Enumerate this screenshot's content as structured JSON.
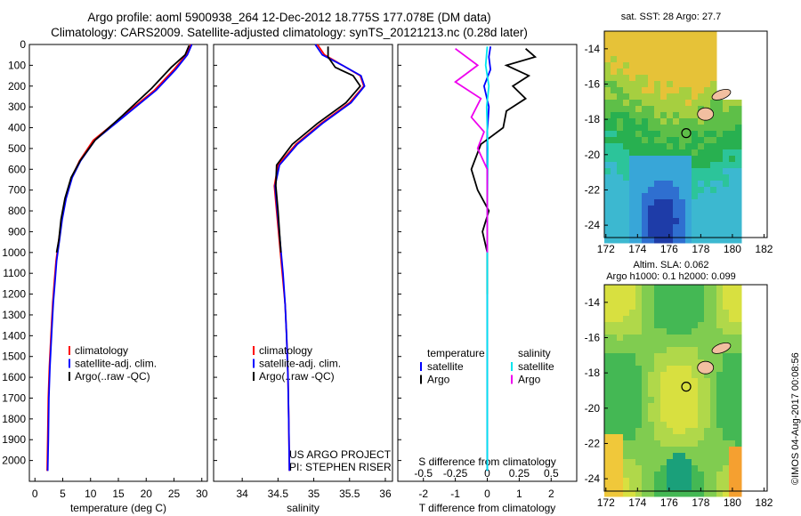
{
  "header": {
    "line1": "Argo profile: aoml 5900938_264 12-Dec-2012 18.775S 177.078E (DM data)",
    "line2": "Climatology: CARS2009. Satellite-adjusted climatology: synTS_20121213.nc (0.28d later)"
  },
  "maps": {
    "sst_title": "sat. SST: 28 Argo: 27.7",
    "sla_title1": "Altim. SLA: 0.062",
    "sla_title2": "Argo h1000: 0.1 h2000: 0.099",
    "lat_ticks": [
      "-14",
      "-16",
      "-18",
      "-20",
      "-22",
      "-24"
    ],
    "lon_ticks": [
      "172",
      "174",
      "176",
      "178",
      "180",
      "182"
    ]
  },
  "sidebar_credit": "©IMOS 04-Aug-2017 00:08:56",
  "colors": {
    "climatology": "#ff0000",
    "satellite": "#0000ff",
    "argo": "#000000",
    "sal_satellite": "#00e5ee",
    "sal_argo": "#ee00ee"
  },
  "chart_data": [
    {
      "type": "line",
      "xlabel": "temperature (deg C)",
      "ylabel": "",
      "xlim": [
        -1,
        31
      ],
      "ylim": [
        2100,
        0
      ],
      "xticks": [
        "0",
        "5",
        "10",
        "15",
        "20",
        "25",
        "30"
      ],
      "yticks": [
        "0",
        "100",
        "200",
        "300",
        "400",
        "500",
        "600",
        "700",
        "800",
        "900",
        "1000",
        "1100",
        "1200",
        "1300",
        "1400",
        "1500",
        "1600",
        "1700",
        "1800",
        "1900",
        "2000"
      ],
      "legend": [
        "climatology",
        "satellite-adj. clim.",
        "Argo(..raw -QC)"
      ],
      "legend_position": "center-right",
      "series": [
        {
          "name": "climatology",
          "color": "#ff0000",
          "x": [
            28.0,
            27.2,
            25.0,
            21.5,
            16.0,
            10.5,
            8.0,
            6.6,
            5.5,
            4.8,
            4.3,
            3.8,
            3.5,
            3.2,
            3.0,
            2.8,
            2.6,
            2.4,
            2.3,
            2.2
          ],
          "y": [
            0,
            50,
            120,
            220,
            340,
            460,
            560,
            640,
            740,
            840,
            940,
            1040,
            1140,
            1240,
            1340,
            1440,
            1550,
            1700,
            1900,
            2050
          ]
        },
        {
          "name": "satellite-adj. clim.",
          "color": "#0000ff",
          "x": [
            28.2,
            27.4,
            25.3,
            21.8,
            16.3,
            10.8,
            8.2,
            6.7,
            5.6,
            4.9,
            4.4,
            3.9,
            3.6,
            3.3,
            3.1,
            2.9,
            2.7,
            2.5,
            2.4,
            2.3
          ],
          "y": [
            0,
            50,
            120,
            220,
            340,
            460,
            560,
            640,
            740,
            840,
            940,
            1040,
            1140,
            1240,
            1340,
            1440,
            1550,
            1700,
            1900,
            2050
          ]
        },
        {
          "name": "Argo(..raw -QC)",
          "color": "#000000",
          "x": [
            27.7,
            27.0,
            24.5,
            21.0,
            15.8,
            10.8,
            8.1,
            6.5,
            5.4,
            4.7,
            4.3,
            3.9
          ],
          "y": [
            5,
            50,
            110,
            210,
            340,
            460,
            560,
            640,
            740,
            840,
            940,
            1000
          ]
        }
      ]
    },
    {
      "type": "line",
      "xlabel": "salinity",
      "xlim": [
        33.6,
        36.1
      ],
      "ylim": [
        2100,
        0
      ],
      "xticks": [
        "34",
        "34.5",
        "35",
        "35.5",
        "36"
      ],
      "legend": [
        "climatology",
        "satellite-adj. clim.",
        "Argo(..raw -QC)"
      ],
      "legend_position": "center-right",
      "annotations": [
        "US ARGO PROJECT",
        "PI: STEPHEN RISER"
      ],
      "series": [
        {
          "name": "climatology",
          "color": "#ff0000",
          "x": [
            35.05,
            35.15,
            35.4,
            35.65,
            35.7,
            35.5,
            35.1,
            34.75,
            34.5,
            34.45,
            34.48,
            34.52,
            34.56,
            34.6,
            34.62,
            34.64,
            34.65,
            34.66
          ],
          "y": [
            0,
            50,
            100,
            150,
            200,
            280,
            380,
            480,
            580,
            680,
            800,
            950,
            1100,
            1250,
            1400,
            1600,
            1800,
            2050
          ]
        },
        {
          "name": "satellite-adj. clim.",
          "color": "#0000ff",
          "x": [
            35.02,
            35.12,
            35.4,
            35.66,
            35.71,
            35.52,
            35.12,
            34.77,
            34.52,
            34.46,
            34.49,
            34.53,
            34.57,
            34.6,
            34.62,
            34.64,
            34.65,
            34.66
          ],
          "y": [
            0,
            50,
            100,
            150,
            200,
            280,
            380,
            480,
            580,
            680,
            800,
            950,
            1100,
            1250,
            1400,
            1600,
            1800,
            2050
          ]
        },
        {
          "name": "Argo(..raw -QC)",
          "color": "#000000",
          "x": [
            35.2,
            35.2,
            35.3,
            35.55,
            35.65,
            35.45,
            35.05,
            34.7,
            34.48,
            34.47,
            34.5,
            34.54
          ],
          "y": [
            10,
            60,
            110,
            150,
            200,
            280,
            380,
            480,
            580,
            680,
            800,
            1000
          ]
        }
      ]
    },
    {
      "type": "line",
      "xlabel": "T difference from climatology",
      "xlabel2": "S difference from climatology",
      "xlim": [
        -2.8,
        2.8
      ],
      "ylim": [
        2100,
        0
      ],
      "xticks": [
        "-2",
        "-1",
        "0",
        "1",
        "2"
      ],
      "xticks_top": [
        "-0.5",
        "-0.25",
        "0",
        "0.25",
        "0.5"
      ],
      "legend_temperature": {
        "title": "temperature",
        "items": [
          "satellite",
          "Argo"
        ]
      },
      "legend_salinity": {
        "title": "salinity",
        "items": [
          "satellite",
          "Argo"
        ]
      },
      "series": [
        {
          "name": "satellite",
          "color": "#0000ff",
          "x": [
            0.1,
            0.05,
            0.1,
            -0.1,
            0.05,
            0.0,
            0.0,
            0.0,
            0.0,
            0.0,
            0.0,
            0.0
          ],
          "y": [
            10,
            60,
            120,
            200,
            300,
            420,
            560,
            700,
            900,
            1200,
            1600,
            2050
          ]
        },
        {
          "name": "Argo",
          "color": "#000000",
          "x": [
            1.2,
            1.5,
            0.6,
            1.3,
            0.8,
            1.2,
            0.6,
            0.5,
            -0.2,
            -0.5,
            -0.3,
            0.05,
            -0.15,
            0.0,
            0.0
          ],
          "y": [
            20,
            60,
            100,
            150,
            200,
            260,
            320,
            400,
            480,
            600,
            700,
            800,
            900,
            1000,
            1200
          ]
        },
        {
          "name": "sal satellite",
          "color": "#00e5ee",
          "x": [
            0.0,
            -0.05,
            0.05,
            -0.02,
            0.02,
            0.0,
            0.0,
            0.0
          ],
          "y": [
            10,
            100,
            200,
            300,
            500,
            800,
            1200,
            2050
          ]
        },
        {
          "name": "sal Argo",
          "color": "#ee00ee",
          "x": [
            -1.0,
            -0.3,
            -1.0,
            -0.2,
            -0.5,
            -0.1,
            -0.3,
            0.0,
            0.0
          ],
          "y": [
            20,
            100,
            180,
            260,
            350,
            420,
            500,
            600,
            1000
          ]
        }
      ]
    }
  ]
}
